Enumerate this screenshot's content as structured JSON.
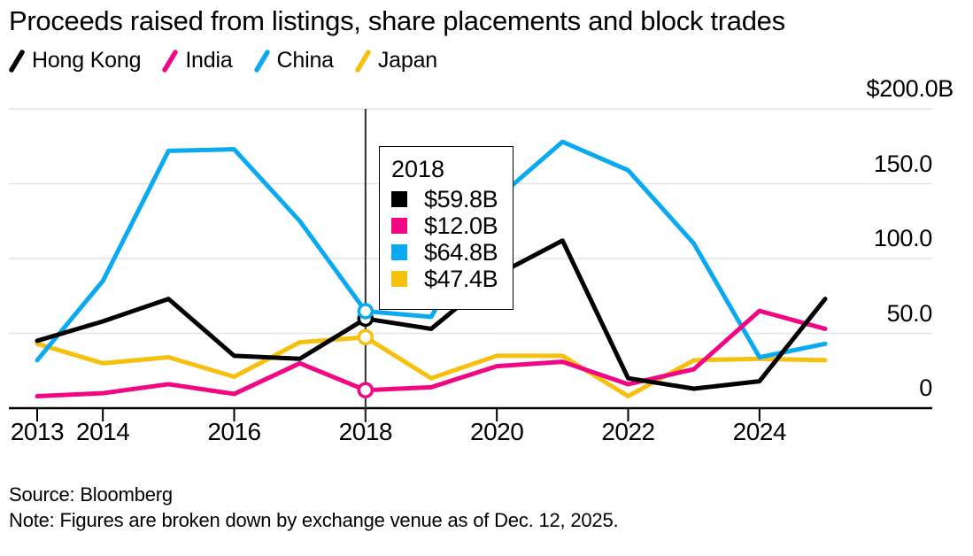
{
  "title": "Proceeds raised from listings, share placements and block trades",
  "legend": {
    "items": [
      {
        "label": "Hong Kong",
        "color": "#000000"
      },
      {
        "label": "India",
        "color": "#f10784"
      },
      {
        "label": "China",
        "color": "#0aa9f1"
      },
      {
        "label": "Japan",
        "color": "#f6c00e"
      }
    ]
  },
  "chart_data": {
    "type": "line",
    "title": "Proceeds raised from listings, share placements and block trades",
    "x": [
      2013,
      2014,
      2015,
      2016,
      2017,
      2018,
      2019,
      2020,
      2021,
      2022,
      2023,
      2024,
      2025
    ],
    "series": [
      {
        "name": "Hong Kong",
        "color": "#000000",
        "values": [
          45,
          58,
          73,
          35,
          33,
          59.8,
          53,
          89,
          112,
          20,
          13,
          18,
          73
        ]
      },
      {
        "name": "India",
        "color": "#f10784",
        "values": [
          8,
          10,
          16,
          9.5,
          30,
          12,
          14,
          28,
          31,
          16,
          26,
          65,
          53
        ]
      },
      {
        "name": "China",
        "color": "#0aa9f1",
        "values": [
          32,
          85,
          172,
          173,
          125,
          64.8,
          61,
          140,
          178,
          159,
          110,
          34,
          43
        ]
      },
      {
        "name": "Japan",
        "color": "#f6c00e",
        "values": [
          43,
          30,
          34,
          21,
          44,
          47.4,
          20,
          35,
          35,
          8,
          32,
          33,
          32
        ]
      }
    ],
    "ylim": [
      0,
      200
    ],
    "yticks": [
      0,
      50,
      100,
      150,
      200
    ],
    "ytick_labels": [
      "0",
      "50.0",
      "100.0",
      "150.0",
      "$200.0B"
    ],
    "xtick_years": [
      2013,
      2014,
      2016,
      2018,
      2020,
      2022,
      2024
    ],
    "grid": true,
    "legend_position": "top-left",
    "highlighted_year": 2018
  },
  "tooltip": {
    "year_label": "2018",
    "rows": [
      {
        "series": "Hong Kong",
        "color": "#000000",
        "value": 59.8,
        "label": "$59.8B"
      },
      {
        "series": "India",
        "color": "#f10784",
        "value": 12.0,
        "label": "$12.0B"
      },
      {
        "series": "China",
        "color": "#0aa9f1",
        "value": 64.8,
        "label": "$64.8B"
      },
      {
        "series": "Japan",
        "color": "#f6c00e",
        "value": 47.4,
        "label": "$47.4B"
      }
    ]
  },
  "footer": {
    "source": "Source: Bloomberg",
    "note": "Note: Figures are broken down by exchange venue as of Dec. 12, 2025."
  }
}
